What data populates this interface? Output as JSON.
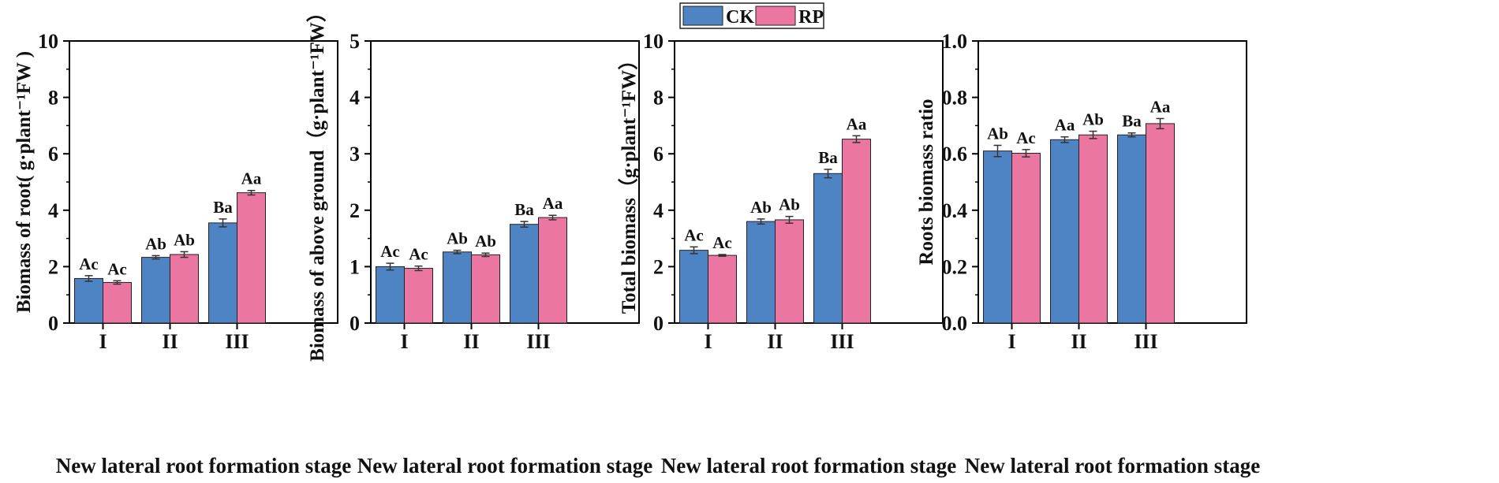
{
  "colors": {
    "ck": "#4F84C4",
    "rp": "#EC76A2",
    "axis": "#000000",
    "error": "#333333"
  },
  "legend": [
    {
      "key": "ck",
      "label": "CK"
    },
    {
      "key": "rp",
      "label": "RP"
    }
  ],
  "chart_data": [
    {
      "type": "bar",
      "title": "",
      "categories": [
        "I",
        "II",
        "III"
      ],
      "xlabel": "New lateral root formation stage",
      "ylabel": "Biomass of root( g·plant⁻¹FW )",
      "ylim": [
        0,
        10
      ],
      "yticks": [
        "0",
        "2",
        "4",
        "6",
        "8",
        "10"
      ],
      "series": [
        {
          "name": "CK",
          "values": [
            1.58,
            2.33,
            3.55
          ],
          "errors": [
            0.1,
            0.06,
            0.14
          ],
          "letters": [
            "Ac",
            "Ab",
            "Ba"
          ]
        },
        {
          "name": "RP",
          "values": [
            1.44,
            2.43,
            4.62
          ],
          "errors": [
            0.06,
            0.1,
            0.08
          ],
          "letters": [
            "Ac",
            "Ab",
            "Aa"
          ]
        }
      ]
    },
    {
      "type": "bar",
      "title": "",
      "categories": [
        "I",
        "II",
        "III"
      ],
      "xlabel": "New lateral root formation stage",
      "ylabel": "Biomass of above ground（g·plant⁻¹FW）",
      "ylim": [
        0,
        5
      ],
      "yticks": [
        "0",
        "1",
        "2",
        "3",
        "4",
        "5"
      ],
      "series": [
        {
          "name": "CK",
          "values": [
            1.0,
            1.26,
            1.75
          ],
          "errors": [
            0.06,
            0.03,
            0.05
          ],
          "letters": [
            "Ac",
            "Ab",
            "Ba"
          ]
        },
        {
          "name": "RP",
          "values": [
            0.97,
            1.21,
            1.87
          ],
          "errors": [
            0.04,
            0.03,
            0.04
          ],
          "letters": [
            "Ac",
            "Ab",
            "Aa"
          ]
        }
      ]
    },
    {
      "type": "bar",
      "title": "",
      "categories": [
        "I",
        "II",
        "III"
      ],
      "xlabel": "New lateral root formation stage",
      "ylabel": "Total biomass（g·plant⁻¹FW）",
      "ylim": [
        0,
        10
      ],
      "yticks": [
        "0",
        "2",
        "4",
        "6",
        "8",
        "10"
      ],
      "series": [
        {
          "name": "CK",
          "values": [
            2.58,
            3.6,
            5.3
          ],
          "errors": [
            0.12,
            0.09,
            0.15
          ],
          "letters": [
            "Ac",
            "Ab",
            "Ba"
          ]
        },
        {
          "name": "RP",
          "values": [
            2.4,
            3.66,
            6.52
          ],
          "errors": [
            0.03,
            0.12,
            0.12
          ],
          "letters": [
            "Ac",
            "Ab",
            "Aa"
          ]
        }
      ]
    },
    {
      "type": "bar",
      "title": "",
      "categories": [
        "I",
        "II",
        "III"
      ],
      "xlabel": "New lateral root formation stage",
      "ylabel": "Roots biomass ratio",
      "ylim": [
        0,
        1.0
      ],
      "yticks": [
        "0.0",
        "0.2",
        "0.4",
        "0.6",
        "0.8",
        "1.0"
      ],
      "series": [
        {
          "name": "CK",
          "values": [
            0.61,
            0.65,
            0.667
          ],
          "errors": [
            0.02,
            0.01,
            0.007
          ],
          "letters": [
            "Ab",
            "Aa",
            "Ba"
          ]
        },
        {
          "name": "RP",
          "values": [
            0.602,
            0.667,
            0.707
          ],
          "errors": [
            0.013,
            0.013,
            0.018
          ],
          "letters": [
            "Ac",
            "Ab",
            "Aa"
          ]
        }
      ]
    }
  ]
}
